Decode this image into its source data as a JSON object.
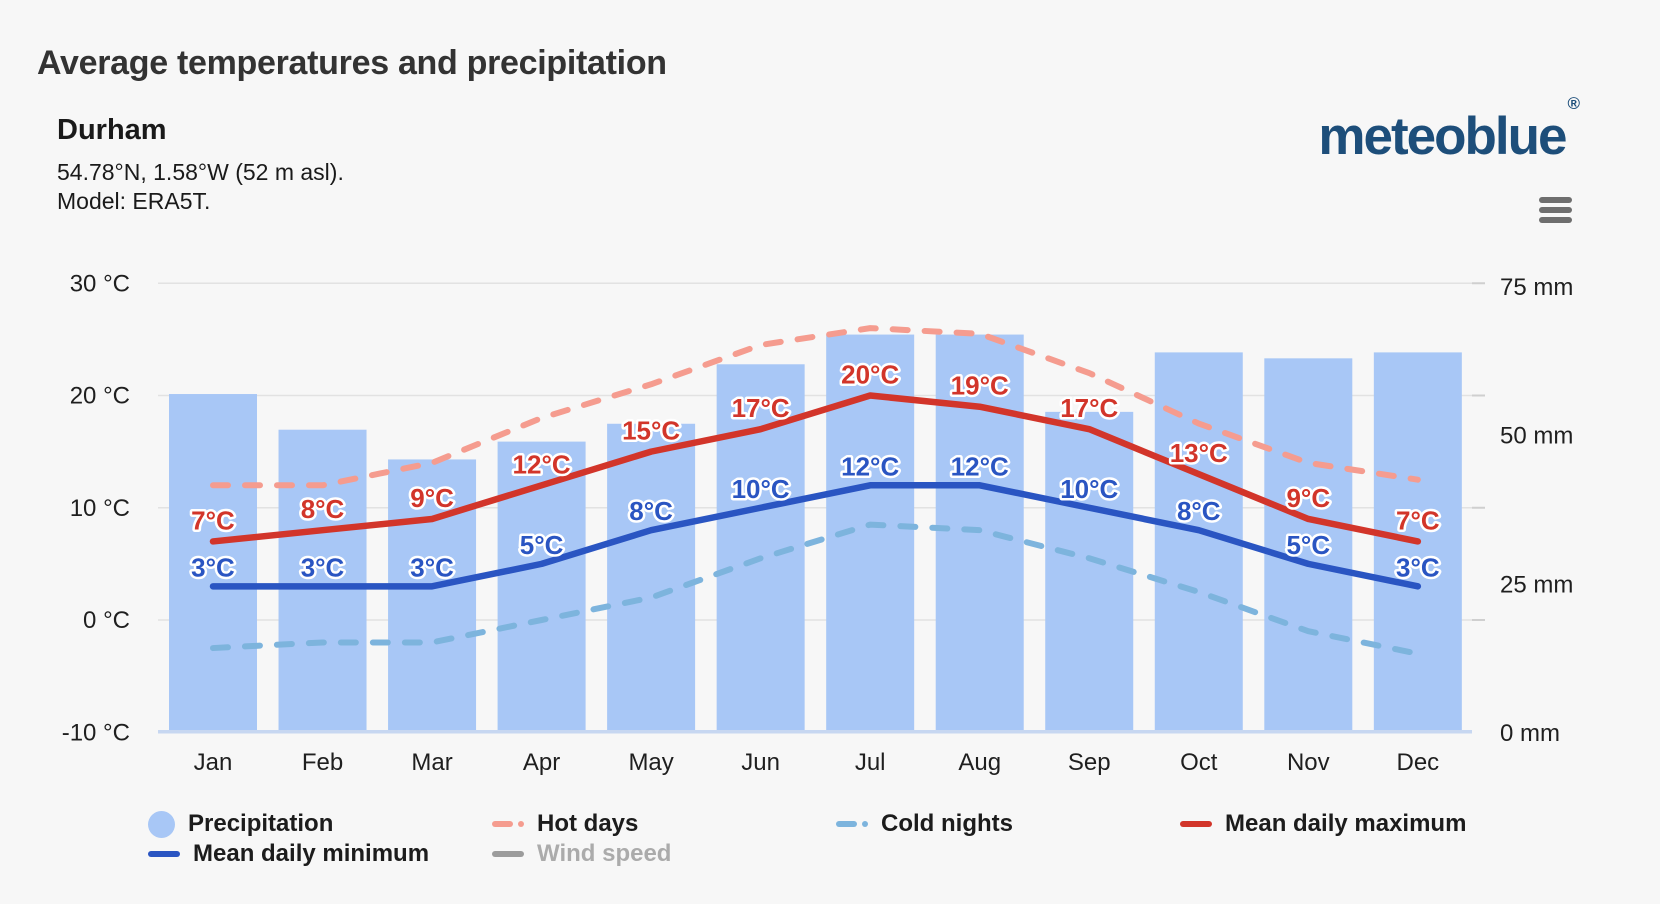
{
  "header": {
    "title": "Average temperatures and precipitation",
    "location_name": "Durham",
    "location_coords": "54.78°N, 1.58°W (52 m asl).",
    "location_model": "Model: ERA5T.",
    "logo_text": "meteoblue",
    "logo_mark": "®"
  },
  "chart_data": {
    "type": "bar",
    "subtype": "climate combo bar+line",
    "categories": [
      "Jan",
      "Feb",
      "Mar",
      "Apr",
      "May",
      "Jun",
      "Jul",
      "Aug",
      "Sep",
      "Oct",
      "Nov",
      "Dec"
    ],
    "series": [
      {
        "name": "Precipitation",
        "type": "bar",
        "axis": "right",
        "unit": "mm",
        "color": "#a8c7f6",
        "values": [
          57,
          51,
          46,
          49,
          52,
          62,
          67,
          67,
          54,
          64,
          63,
          64
        ]
      },
      {
        "name": "Hot days",
        "type": "line",
        "style": "dashed",
        "axis": "left",
        "unit": "°C",
        "color": "#f59c8f",
        "values": [
          12,
          12,
          14,
          18,
          21,
          24.5,
          26,
          25.5,
          22,
          17.5,
          14,
          12.5
        ]
      },
      {
        "name": "Cold nights",
        "type": "line",
        "style": "dashed",
        "axis": "left",
        "unit": "°C",
        "color": "#7db4dd",
        "values": [
          -2.5,
          -2,
          -2,
          0,
          2,
          5.5,
          8.5,
          8,
          5.5,
          2.5,
          -1,
          -3
        ]
      },
      {
        "name": "Mean daily maximum",
        "type": "line",
        "style": "solid",
        "axis": "left",
        "unit": "°C",
        "color": "#d2352a",
        "values": [
          7,
          8,
          9,
          12,
          15,
          17,
          20,
          19,
          17,
          13,
          9,
          7
        ],
        "show_labels": true
      },
      {
        "name": "Mean daily minimum",
        "type": "line",
        "style": "solid",
        "axis": "left",
        "unit": "°C",
        "color": "#2a55c2",
        "values": [
          3,
          3,
          3,
          5,
          8,
          10,
          12,
          12,
          10,
          8,
          5,
          3
        ],
        "show_labels": true
      },
      {
        "name": "Wind speed",
        "type": "line",
        "style": "solid",
        "axis": "left",
        "unit": "",
        "color": "#9c9c9c",
        "values": [],
        "disabled": true
      }
    ],
    "axes": {
      "left": {
        "unit": "°C",
        "range": [
          -10,
          30
        ],
        "ticks": [
          {
            "label": "30 °C",
            "value": 30
          },
          {
            "label": "20 °C",
            "value": 20
          },
          {
            "label": "10 °C",
            "value": 10
          },
          {
            "label": "0 °C",
            "value": 0
          },
          {
            "label": "-10 °C",
            "value": -10
          }
        ]
      },
      "right": {
        "unit": "mm",
        "range": [
          0,
          75
        ],
        "ticks": [
          {
            "label": "75 mm",
            "value": 75
          },
          {
            "label": "50 mm",
            "value": 50
          },
          {
            "label": "25 mm",
            "value": 25
          },
          {
            "label": "0 mm",
            "value": 0
          }
        ]
      }
    },
    "grid": true,
    "legend_position": "bottom"
  },
  "legend": {
    "items": [
      {
        "label": "Precipitation",
        "swatch": "circle",
        "color": "#a8c7f6",
        "disabled": false
      },
      {
        "label": "Hot days",
        "swatch": "dashed-line",
        "color": "#f59c8f",
        "disabled": false
      },
      {
        "label": "Cold nights",
        "swatch": "dashed-line",
        "color": "#7db4dd",
        "disabled": false
      },
      {
        "label": "Mean daily maximum",
        "swatch": "solid-line",
        "color": "#d2352a",
        "disabled": false
      },
      {
        "label": "Mean daily minimum",
        "swatch": "solid-line",
        "color": "#2a55c2",
        "disabled": false
      },
      {
        "label": "Wind speed",
        "swatch": "solid-line",
        "color": "#9c9c9c",
        "disabled": true
      }
    ]
  },
  "colors": {
    "background": "#f7f7f7",
    "gridline": "#e2e2e2",
    "axis_text": "#1f1f1f",
    "bar_baseline": "#c7d7f1",
    "logo_blue": "#1d4e7a",
    "menu_gray": "#6e6e6e"
  }
}
